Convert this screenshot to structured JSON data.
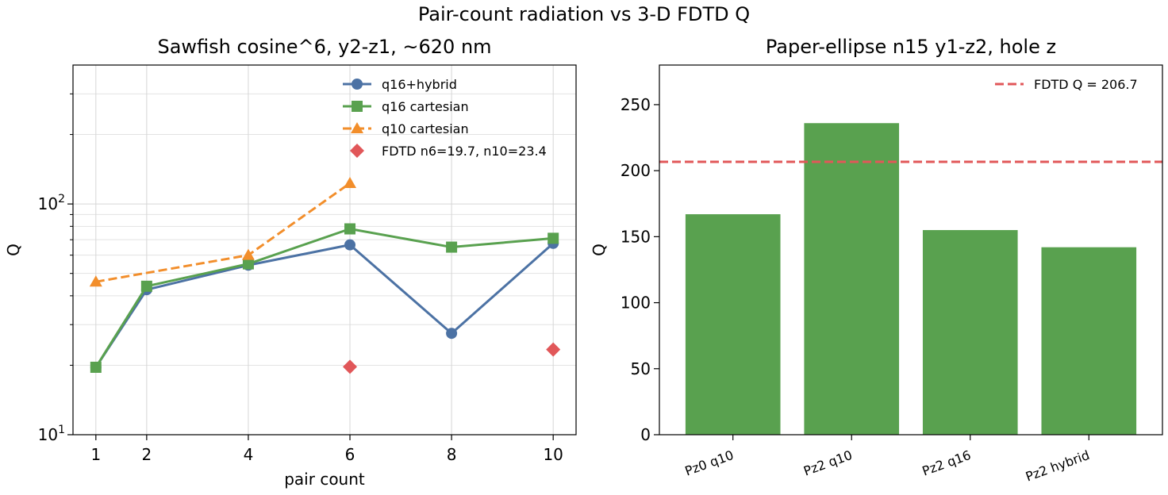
{
  "suptitle": "Pair-count radiation vs 3-D FDTD Q",
  "chart_data": [
    {
      "type": "line",
      "title": "Sawfish cosine^6, y2-z1, ~620 nm",
      "xlabel": "pair count",
      "ylabel": "Q",
      "yscale": "log",
      "ylim": [
        10,
        400
      ],
      "xlim": [
        0.55,
        10.45
      ],
      "xticks": [
        1,
        2,
        4,
        6,
        8,
        10
      ],
      "yticks": [
        {
          "value": 10,
          "base": "10",
          "exp": "1"
        },
        {
          "value": 100,
          "base": "10",
          "exp": "2"
        }
      ],
      "grid": true,
      "legend_position": "top-right",
      "series": [
        {
          "name": "q16+hybrid",
          "color": "#4c72a4",
          "marker": "circle",
          "dash": false,
          "x": [
            1,
            2,
            4,
            6,
            8,
            10
          ],
          "y": [
            19.6,
            42.5,
            54.3,
            66.5,
            27.5,
            67.5
          ]
        },
        {
          "name": "q16 cartesian",
          "color": "#59a14f",
          "marker": "square",
          "dash": false,
          "x": [
            1,
            2,
            4,
            6,
            8,
            10
          ],
          "y": [
            19.6,
            44.0,
            55.0,
            78.0,
            65.0,
            71.0
          ]
        },
        {
          "name": "q10 cartesian",
          "color": "#f28e2b",
          "marker": "triangle",
          "dash": true,
          "x": [
            1,
            4,
            6
          ],
          "y": [
            46.0,
            60.0,
            123.0
          ]
        },
        {
          "name": "FDTD n6=19.7, n10=23.4",
          "color": "#e15759",
          "marker": "diamond",
          "scatter": true,
          "x": [
            6,
            10
          ],
          "y": [
            19.7,
            23.4
          ]
        }
      ]
    },
    {
      "type": "bar",
      "title": "Paper-ellipse n15 y1-z2, hole z",
      "ylabel": "Q",
      "ylim": [
        0,
        280
      ],
      "yticks": [
        0,
        50,
        100,
        150,
        200,
        250
      ],
      "categories": [
        "Pz0 q10",
        "Pz2 q10",
        "Pz2 q16",
        "Pz2 hybrid"
      ],
      "values": [
        167,
        236,
        155,
        142
      ],
      "bar_color": "#59a14f",
      "reference_line": {
        "value": 206.7,
        "label": "FDTD Q = 206.7",
        "color": "#e15759"
      },
      "legend_position": "top-right"
    }
  ]
}
